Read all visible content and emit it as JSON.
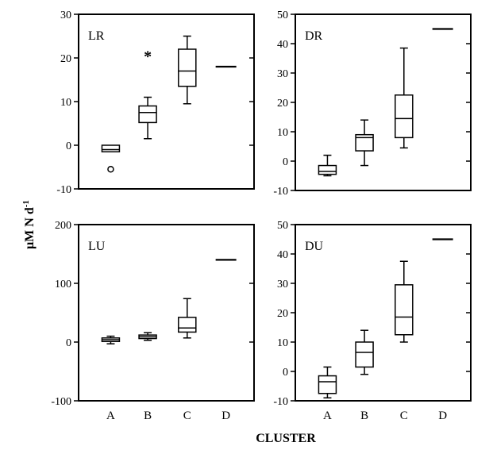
{
  "figure": {
    "ylabel": "μM N d",
    "ylabel_sup": "-1",
    "xlabel": "CLUSTER"
  },
  "chart_data": [
    {
      "type": "box",
      "panel_label": "LR",
      "categories": [
        "A",
        "B",
        "C",
        "D"
      ],
      "ylim": [
        -10,
        30
      ],
      "yticks": [
        -10,
        0,
        10,
        20,
        30
      ],
      "show_category_labels": false,
      "boxes": [
        {
          "category": "A",
          "whisker_low": -1.5,
          "q1": -1.5,
          "median": -1.0,
          "q3": 0.0,
          "whisker_high": 0.0,
          "outliers": [
            {
              "value": -5.5,
              "marker": "o"
            }
          ]
        },
        {
          "category": "B",
          "whisker_low": 1.5,
          "q1": 5.2,
          "median": 7.5,
          "q3": 9.0,
          "whisker_high": 11.0,
          "outliers": [
            {
              "value": 20.8,
              "marker": "*"
            }
          ]
        },
        {
          "category": "C",
          "whisker_low": 9.5,
          "q1": 13.5,
          "median": 17.0,
          "q3": 22.0,
          "whisker_high": 25.0,
          "outliers": []
        },
        {
          "category": "D",
          "whisker_low": 18.0,
          "q1": 18.0,
          "median": 18.0,
          "q3": 18.0,
          "whisker_high": 18.0,
          "outliers": []
        }
      ]
    },
    {
      "type": "box",
      "panel_label": "DR",
      "categories": [
        "A",
        "B",
        "C",
        "D"
      ],
      "ylim": [
        -10,
        50
      ],
      "yticks": [
        -10,
        0,
        10,
        20,
        30,
        40,
        50
      ],
      "show_category_labels": false,
      "boxes": [
        {
          "category": "A",
          "whisker_low": -5.0,
          "q1": -4.5,
          "median": -3.5,
          "q3": -1.5,
          "whisker_high": 2.0,
          "outliers": []
        },
        {
          "category": "B",
          "whisker_low": -1.5,
          "q1": 3.5,
          "median": 8.0,
          "q3": 9.0,
          "whisker_high": 14.0,
          "outliers": []
        },
        {
          "category": "C",
          "whisker_low": 4.5,
          "q1": 8.0,
          "median": 14.5,
          "q3": 22.5,
          "whisker_high": 38.5,
          "outliers": []
        },
        {
          "category": "D",
          "whisker_low": 45.0,
          "q1": 45.0,
          "median": 45.0,
          "q3": 45.0,
          "whisker_high": 45.0,
          "outliers": []
        }
      ]
    },
    {
      "type": "box",
      "panel_label": "LU",
      "categories": [
        "A",
        "B",
        "C",
        "D"
      ],
      "ylim": [
        -100,
        200
      ],
      "yticks": [
        -100,
        0,
        100,
        200
      ],
      "show_category_labels": true,
      "boxes": [
        {
          "category": "A",
          "whisker_low": -3.0,
          "q1": 1.0,
          "median": 4.0,
          "q3": 7.0,
          "whisker_high": 10.0,
          "outliers": []
        },
        {
          "category": "B",
          "whisker_low": 3.0,
          "q1": 6.0,
          "median": 9.0,
          "q3": 12.0,
          "whisker_high": 16.0,
          "outliers": []
        },
        {
          "category": "C",
          "whisker_low": 7.0,
          "q1": 17.0,
          "median": 24.0,
          "q3": 42.0,
          "whisker_high": 74.0,
          "outliers": []
        },
        {
          "category": "D",
          "whisker_low": 140.0,
          "q1": 140.0,
          "median": 140.0,
          "q3": 140.0,
          "whisker_high": 140.0,
          "outliers": []
        }
      ]
    },
    {
      "type": "box",
      "panel_label": "DU",
      "categories": [
        "A",
        "B",
        "C",
        "D"
      ],
      "ylim": [
        -10,
        50
      ],
      "yticks": [
        -10,
        0,
        10,
        20,
        30,
        40,
        50
      ],
      "show_category_labels": true,
      "boxes": [
        {
          "category": "A",
          "whisker_low": -9.0,
          "q1": -7.5,
          "median": -3.5,
          "q3": -1.5,
          "whisker_high": 1.5,
          "outliers": []
        },
        {
          "category": "B",
          "whisker_low": -1.0,
          "q1": 1.5,
          "median": 6.5,
          "q3": 10.0,
          "whisker_high": 14.0,
          "outliers": []
        },
        {
          "category": "C",
          "whisker_low": 10.0,
          "q1": 12.5,
          "median": 18.5,
          "q3": 29.5,
          "whisker_high": 37.5,
          "outliers": []
        },
        {
          "category": "D",
          "whisker_low": 45.0,
          "q1": 45.0,
          "median": 45.0,
          "q3": 45.0,
          "whisker_high": 45.0,
          "outliers": []
        }
      ]
    }
  ]
}
